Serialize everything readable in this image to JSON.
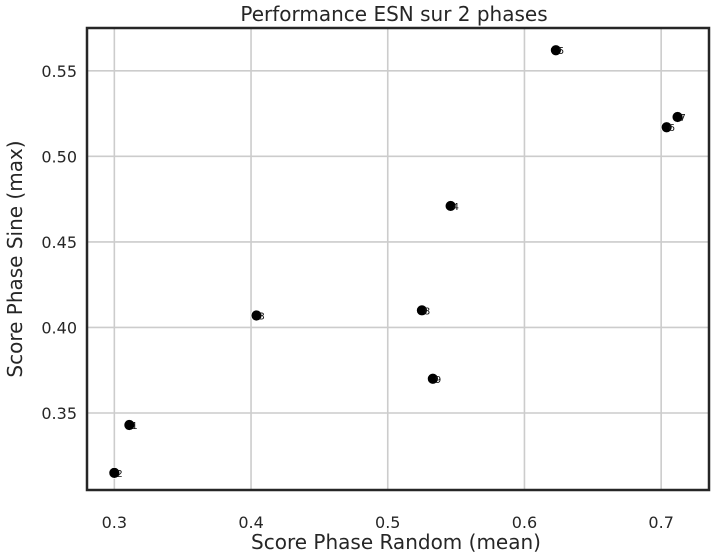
{
  "chart_data": {
    "type": "scatter",
    "title": "Performance ESN sur 2 phases",
    "xlabel": "Score Phase Random (mean)",
    "ylabel": "Score Phase Sine (max)",
    "xlim": [
      0.28,
      0.735
    ],
    "ylim": [
      0.305,
      0.575
    ],
    "xticks": [
      "0.3",
      "0.4",
      "0.5",
      "0.6",
      "0.7"
    ],
    "yticks": [
      "0.35",
      "0.40",
      "0.45",
      "0.50",
      "0.55"
    ],
    "grid": true,
    "point_color": "#000000",
    "points": [
      {
        "label": "1",
        "x": 0.311,
        "y": 0.343
      },
      {
        "label": "2",
        "x": 0.3,
        "y": 0.315
      },
      {
        "label": "3",
        "x": 0.404,
        "y": 0.407
      },
      {
        "label": "4",
        "x": 0.546,
        "y": 0.471
      },
      {
        "label": "5",
        "x": 0.623,
        "y": 0.562
      },
      {
        "label": "6",
        "x": 0.704,
        "y": 0.517
      },
      {
        "label": "7",
        "x": 0.712,
        "y": 0.523
      },
      {
        "label": "8",
        "x": 0.525,
        "y": 0.41
      },
      {
        "label": "9",
        "x": 0.533,
        "y": 0.37
      }
    ]
  }
}
